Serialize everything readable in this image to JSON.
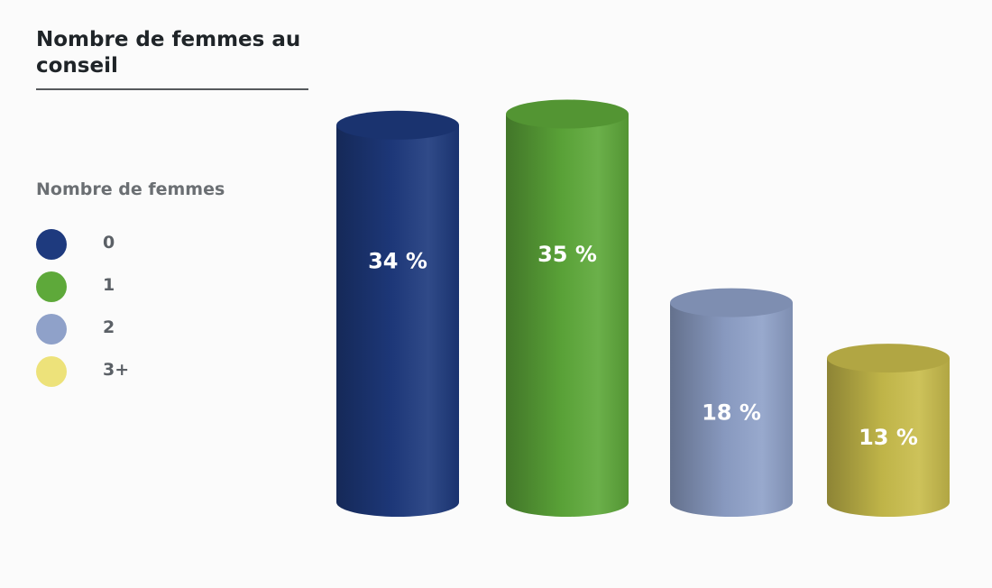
{
  "title": "Nombre de femmes au conseil",
  "legend": {
    "title": "Nombre de femmes",
    "items": [
      {
        "label": "0",
        "color": "#1e3a7e"
      },
      {
        "label": "1",
        "color": "#5ea93a"
      },
      {
        "label": "2",
        "color": "#8fa1c9"
      },
      {
        "label": "3+",
        "color": "#ede27a"
      }
    ]
  },
  "chart_data": {
    "type": "bar",
    "title": "Nombre de femmes au conseil",
    "legend_title": "Nombre de femmes",
    "legend_placement": "left",
    "categories": [
      "0",
      "1",
      "2",
      "3+"
    ],
    "values": [
      34,
      35,
      18,
      13
    ],
    "value_labels": [
      "34 %",
      "35 %",
      "18 %",
      "13 %"
    ],
    "unit": "%",
    "style": "3d-cylinder",
    "grid": false,
    "colors": {
      "0": "#1e3a7e",
      "1": "#5ea93a",
      "2": "#8fa1c9",
      "3+": "#c9bd4c"
    }
  }
}
